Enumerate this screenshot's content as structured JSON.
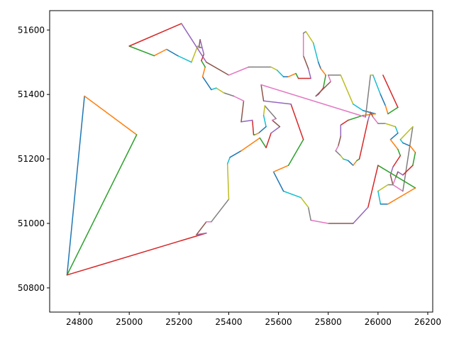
{
  "chart_data": {
    "type": "line",
    "title": "",
    "xlabel": "",
    "ylabel": "",
    "xlim": [
      24680,
      26220
    ],
    "ylim": [
      50725,
      51660
    ],
    "x_ticks": [
      24800,
      25000,
      25200,
      25400,
      25600,
      25800,
      26000,
      26200
    ],
    "y_ticks": [
      50800,
      51000,
      51200,
      51400,
      51600
    ],
    "x_tick_labels": [
      "24800",
      "25000",
      "25200",
      "25400",
      "25600",
      "25800",
      "26000",
      "26200"
    ],
    "y_tick_labels": [
      "50800",
      "51000",
      "51200",
      "51400",
      "51600"
    ],
    "grid": false,
    "legend": "none",
    "segment_colors": [
      "#1f77b4",
      "#ff7f0e",
      "#2ca02c",
      "#d62728",
      "#9467bd",
      "#8c564b",
      "#e377c2",
      "#7f7f7f",
      "#bcbd22",
      "#17becf"
    ],
    "path": [
      [
        24750,
        50840
      ],
      [
        24820,
        51395
      ],
      [
        25030,
        51275
      ],
      [
        24750,
        50840
      ],
      [
        25310,
        50970
      ],
      [
        25270,
        50965
      ],
      [
        25310,
        51005
      ],
      [
        25330,
        51005
      ],
      [
        25400,
        51075
      ],
      [
        25395,
        51185
      ],
      [
        25405,
        51205
      ],
      [
        25450,
        51225
      ],
      [
        25525,
        51265
      ],
      [
        25550,
        51235
      ],
      [
        25570,
        51280
      ],
      [
        25605,
        51300
      ],
      [
        25575,
        51320
      ],
      [
        25590,
        51325
      ],
      [
        25545,
        51365
      ],
      [
        25540,
        51335
      ],
      [
        25550,
        51300
      ],
      [
        25520,
        51280
      ],
      [
        25505,
        51275
      ],
      [
        25500,
        51275
      ],
      [
        25495,
        51320
      ],
      [
        25450,
        51315
      ],
      [
        25460,
        51380
      ],
      [
        25420,
        51395
      ],
      [
        25380,
        51405
      ],
      [
        25350,
        51420
      ],
      [
        25330,
        51415
      ],
      [
        25295,
        51455
      ],
      [
        25305,
        51485
      ],
      [
        25290,
        51505
      ],
      [
        25300,
        51525
      ],
      [
        25285,
        51570
      ],
      [
        25280,
        51545
      ],
      [
        25290,
        51545
      ],
      [
        25275,
        51550
      ],
      [
        25250,
        51500
      ],
      [
        25195,
        51520
      ],
      [
        25150,
        51540
      ],
      [
        25100,
        51520
      ],
      [
        25000,
        51550
      ],
      [
        25210,
        51620
      ],
      [
        25310,
        51500
      ],
      [
        25400,
        51460
      ],
      [
        25480,
        51485
      ],
      [
        25570,
        51485
      ],
      [
        25595,
        51475
      ],
      [
        25620,
        51455
      ],
      [
        25640,
        51455
      ],
      [
        25670,
        51465
      ],
      [
        25680,
        51450
      ],
      [
        25730,
        51450
      ],
      [
        25720,
        51480
      ],
      [
        25700,
        51520
      ],
      [
        25700,
        51590
      ],
      [
        25710,
        51595
      ],
      [
        25740,
        51560
      ],
      [
        25760,
        51500
      ],
      [
        25770,
        51480
      ],
      [
        25790,
        51460
      ],
      [
        25780,
        51420
      ],
      [
        25760,
        51400
      ],
      [
        25750,
        51395
      ],
      [
        25810,
        51440
      ],
      [
        25800,
        51460
      ],
      [
        25850,
        51460
      ],
      [
        25900,
        51370
      ],
      [
        25940,
        51350
      ],
      [
        25990,
        51340
      ],
      [
        25940,
        51335
      ],
      [
        25880,
        51320
      ],
      [
        25850,
        51305
      ],
      [
        25850,
        51270
      ],
      [
        25840,
        51240
      ],
      [
        25830,
        51225
      ],
      [
        25850,
        51210
      ],
      [
        25860,
        51200
      ],
      [
        25880,
        51195
      ],
      [
        25900,
        51180
      ],
      [
        25915,
        51195
      ],
      [
        25925,
        51200
      ],
      [
        25960,
        51320
      ],
      [
        25970,
        51345
      ],
      [
        25980,
        51330
      ],
      [
        26000,
        51310
      ],
      [
        26030,
        51310
      ],
      [
        26070,
        51300
      ],
      [
        26080,
        51280
      ],
      [
        26050,
        51260
      ],
      [
        26080,
        51230
      ],
      [
        26090,
        51210
      ],
      [
        26060,
        51175
      ],
      [
        26050,
        51150
      ],
      [
        26060,
        51120
      ],
      [
        26100,
        51100
      ],
      [
        26140,
        51300
      ],
      [
        26090,
        51260
      ],
      [
        26100,
        51250
      ],
      [
        26130,
        51240
      ],
      [
        26150,
        51220
      ],
      [
        26140,
        51180
      ],
      [
        26100,
        51150
      ],
      [
        26080,
        51160
      ],
      [
        26070,
        51140
      ],
      [
        26060,
        51120
      ],
      [
        26040,
        51120
      ],
      [
        26000,
        51100
      ],
      [
        26010,
        51060
      ],
      [
        26040,
        51060
      ],
      [
        26150,
        51110
      ],
      [
        26000,
        51180
      ],
      [
        25960,
        51050
      ],
      [
        25900,
        51000
      ],
      [
        25800,
        51000
      ],
      [
        25730,
        51010
      ],
      [
        25720,
        51050
      ],
      [
        25690,
        51080
      ],
      [
        25620,
        51100
      ],
      [
        25580,
        51160
      ],
      [
        25640,
        51180
      ],
      [
        25700,
        51260
      ],
      [
        25650,
        51370
      ],
      [
        25540,
        51380
      ],
      [
        25530,
        51430
      ],
      [
        25950,
        51330
      ],
      [
        25970,
        51460
      ],
      [
        25980,
        51460
      ],
      [
        26010,
        51400
      ],
      [
        26030,
        51365
      ],
      [
        26040,
        51340
      ],
      [
        26080,
        51360
      ],
      [
        26020,
        51460
      ]
    ]
  }
}
